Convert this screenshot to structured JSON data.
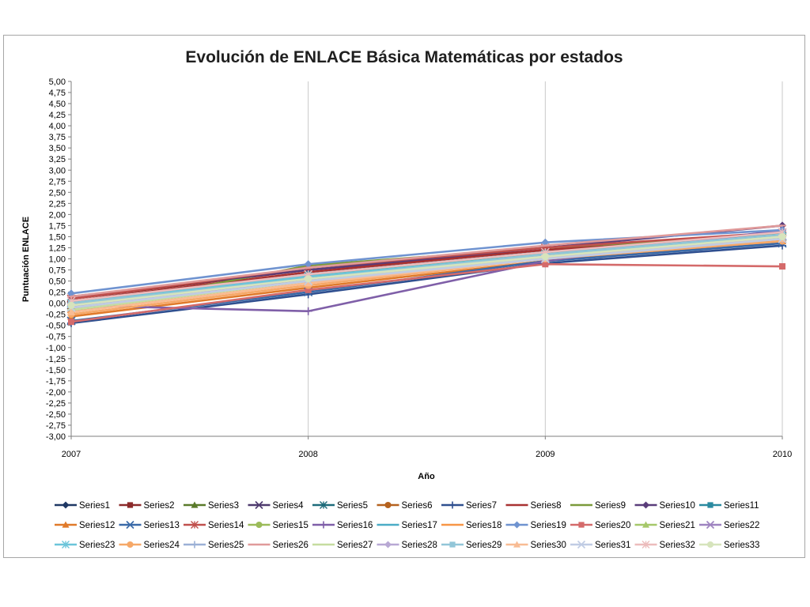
{
  "chart_data": {
    "type": "line",
    "title": "Evolución de ENLACE Básica Matemáticas por estados",
    "xlabel": "Año",
    "ylabel": "Puntuación ENLACE",
    "categories": [
      "2007",
      "2008",
      "2009",
      "2010"
    ],
    "ylim": [
      -3.0,
      5.0
    ],
    "y_step": 0.25,
    "y_tick_labels": [
      "5,00",
      "4,75",
      "4,50",
      "4,25",
      "4,00",
      "3,75",
      "3,50",
      "3,25",
      "3,00",
      "2,75",
      "2,50",
      "2,25",
      "2,00",
      "1,75",
      "1,50",
      "1,25",
      "1,00",
      "0,75",
      "0,50",
      "0,25",
      "0,00",
      "-0,25",
      "-0,50",
      "-0,75",
      "-1,00",
      "-1,25",
      "-1,50",
      "-1,75",
      "-2,00",
      "-2,25",
      "-2,50",
      "-2,75",
      "-3,00"
    ],
    "grid": "vertical",
    "legend_position": "bottom",
    "series": [
      {
        "name": "Series1",
        "color": "#1f3864",
        "marker": "diamond",
        "values": [
          -0.05,
          0.55,
          1.05,
          1.4
        ]
      },
      {
        "name": "Series2",
        "color": "#8b2a2a",
        "marker": "square",
        "values": [
          0.1,
          0.75,
          1.2,
          1.55
        ]
      },
      {
        "name": "Series3",
        "color": "#5a7a2a",
        "marker": "triangle",
        "values": [
          -0.1,
          0.6,
          1.15,
          1.45
        ]
      },
      {
        "name": "Series4",
        "color": "#4e3a6e",
        "marker": "x",
        "values": [
          -0.05,
          0.55,
          1.1,
          1.5
        ]
      },
      {
        "name": "Series5",
        "color": "#1d6b7a",
        "marker": "star",
        "values": [
          0.0,
          0.6,
          1.1,
          1.45
        ]
      },
      {
        "name": "Series6",
        "color": "#b5621e",
        "marker": "circle",
        "values": [
          -0.15,
          0.5,
          1.0,
          1.4
        ]
      },
      {
        "name": "Series7",
        "color": "#2f4f8f",
        "marker": "plus",
        "values": [
          -0.45,
          0.2,
          0.9,
          1.3
        ]
      },
      {
        "name": "Series8",
        "color": "#a83232",
        "marker": "dash",
        "values": [
          0.05,
          0.7,
          1.2,
          1.6
        ]
      },
      {
        "name": "Series9",
        "color": "#7a9a3a",
        "marker": "dash",
        "values": [
          -0.2,
          0.85,
          1.25,
          1.55
        ]
      },
      {
        "name": "Series10",
        "color": "#5a3d7a",
        "marker": "diamond",
        "values": [
          0.15,
          0.75,
          1.25,
          1.75
        ]
      },
      {
        "name": "Series11",
        "color": "#2a8aa0",
        "marker": "square",
        "values": [
          0.0,
          0.65,
          1.15,
          1.55
        ]
      },
      {
        "name": "Series12",
        "color": "#e07a2a",
        "marker": "triangle",
        "values": [
          -0.3,
          0.35,
          0.95,
          1.4
        ]
      },
      {
        "name": "Series13",
        "color": "#3a6aa8",
        "marker": "x",
        "values": [
          -0.4,
          0.25,
          0.95,
          1.35
        ]
      },
      {
        "name": "Series14",
        "color": "#c0504d",
        "marker": "star",
        "values": [
          0.1,
          0.8,
          1.25,
          1.6
        ]
      },
      {
        "name": "Series15",
        "color": "#9bbb59",
        "marker": "circle",
        "values": [
          -0.05,
          0.6,
          1.1,
          1.5
        ]
      },
      {
        "name": "Series16",
        "color": "#7f5fa8",
        "marker": "plus",
        "values": [
          -0.05,
          -0.18,
          0.95,
          1.65
        ]
      },
      {
        "name": "Series17",
        "color": "#4bacc6",
        "marker": "dash",
        "values": [
          0.0,
          0.65,
          1.15,
          1.5
        ]
      },
      {
        "name": "Series18",
        "color": "#f79646",
        "marker": "dash",
        "values": [
          -0.2,
          0.45,
          1.0,
          1.4
        ]
      },
      {
        "name": "Series19",
        "color": "#6f93d0",
        "marker": "diamond",
        "values": [
          0.22,
          0.88,
          1.37,
          1.65
        ]
      },
      {
        "name": "Series20",
        "color": "#d46a6a",
        "marker": "square",
        "values": [
          -0.42,
          0.3,
          0.88,
          0.83
        ]
      },
      {
        "name": "Series21",
        "color": "#a6c86a",
        "marker": "triangle",
        "values": [
          -0.1,
          0.55,
          1.05,
          1.45
        ]
      },
      {
        "name": "Series22",
        "color": "#9e83c0",
        "marker": "x",
        "values": [
          -0.1,
          0.55,
          1.05,
          1.45
        ]
      },
      {
        "name": "Series23",
        "color": "#6cc5da",
        "marker": "star",
        "values": [
          0.0,
          0.6,
          1.1,
          1.5
        ]
      },
      {
        "name": "Series24",
        "color": "#f6a868",
        "marker": "circle",
        "values": [
          -0.25,
          0.4,
          1.0,
          1.4
        ]
      },
      {
        "name": "Series25",
        "color": "#9bb0d6",
        "marker": "plus",
        "values": [
          -0.1,
          0.5,
          1.05,
          1.45
        ]
      },
      {
        "name": "Series26",
        "color": "#e09a9a",
        "marker": "dash",
        "values": [
          0.15,
          0.8,
          1.3,
          1.75
        ]
      },
      {
        "name": "Series27",
        "color": "#c6dca0",
        "marker": "dash",
        "values": [
          -0.15,
          0.5,
          1.05,
          1.5
        ]
      },
      {
        "name": "Series28",
        "color": "#b8a8d4",
        "marker": "diamond",
        "values": [
          -0.05,
          0.55,
          1.05,
          1.45
        ]
      },
      {
        "name": "Series29",
        "color": "#92c6d8",
        "marker": "square",
        "values": [
          0.0,
          0.55,
          1.1,
          1.55
        ]
      },
      {
        "name": "Series30",
        "color": "#f8bc94",
        "marker": "triangle",
        "values": [
          -0.2,
          0.45,
          1.0,
          1.45
        ]
      },
      {
        "name": "Series31",
        "color": "#c0cce4",
        "marker": "x",
        "values": [
          -0.1,
          0.5,
          1.0,
          1.45
        ]
      },
      {
        "name": "Series32",
        "color": "#ecbcbc",
        "marker": "star",
        "values": [
          0.05,
          0.65,
          1.15,
          1.6
        ]
      },
      {
        "name": "Series33",
        "color": "#d6e4bc",
        "marker": "circle",
        "values": [
          -0.05,
          0.55,
          1.05,
          1.5
        ]
      }
    ]
  }
}
